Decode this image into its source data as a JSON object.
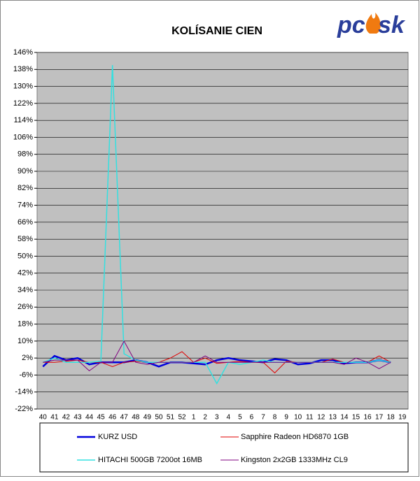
{
  "chart_data": {
    "type": "line",
    "title": "KOLÍSANIE CIEN",
    "logo": {
      "left": "pc",
      "right": "sk"
    },
    "categories": [
      "40",
      "41",
      "42",
      "43",
      "44",
      "45",
      "46",
      "47",
      "48",
      "49",
      "50",
      "51",
      "52",
      "1",
      "2",
      "3",
      "4",
      "5",
      "6",
      "7",
      "8",
      "9",
      "10",
      "11",
      "12",
      "13",
      "14",
      "15",
      "16",
      "17",
      "18",
      "19"
    ],
    "ylim": [
      -22,
      146
    ],
    "yticks": [
      {
        "value": -22,
        "label": "-22%"
      },
      {
        "value": -14,
        "label": "-14%"
      },
      {
        "value": -6,
        "label": "-6%"
      },
      {
        "value": 2,
        "label": "2%"
      },
      {
        "value": 10,
        "label": "10%"
      },
      {
        "value": 18,
        "label": "18%"
      },
      {
        "value": 26,
        "label": "26%"
      },
      {
        "value": 34,
        "label": "34%"
      },
      {
        "value": 42,
        "label": "42%"
      },
      {
        "value": 50,
        "label": "50%"
      },
      {
        "value": 58,
        "label": "58%"
      },
      {
        "value": 66,
        "label": "66%"
      },
      {
        "value": 74,
        "label": "74%"
      },
      {
        "value": 82,
        "label": "82%"
      },
      {
        "value": 90,
        "label": "90%"
      },
      {
        "value": 98,
        "label": "98%"
      },
      {
        "value": 106,
        "label": "106%"
      },
      {
        "value": 114,
        "label": "114%"
      },
      {
        "value": 122,
        "label": "122%"
      },
      {
        "value": 130,
        "label": "130%"
      },
      {
        "value": 138,
        "label": "138%"
      },
      {
        "value": 146,
        "label": "146%"
      }
    ],
    "grid": true,
    "series": [
      {
        "name": "KURZ USD",
        "color": "#0000dd",
        "width": 2.5,
        "values": [
          -2,
          3,
          1,
          2,
          -1,
          0,
          0,
          0,
          1,
          0,
          -2,
          0,
          0,
          -0.5,
          -1,
          1,
          2,
          1,
          0.5,
          0,
          1.5,
          1,
          -1,
          -0.5,
          1,
          1,
          -0.5,
          0,
          0,
          1,
          0,
          null
        ]
      },
      {
        "name": "Sapphire Radeon HD6870 1GB",
        "color": "#e00000",
        "width": 1,
        "values": [
          0,
          0,
          0.5,
          1,
          0,
          0,
          -2,
          0,
          0.5,
          0,
          0,
          2,
          5,
          0,
          2,
          -0.5,
          0,
          0.5,
          0,
          0,
          -5,
          0.5,
          0,
          0,
          0,
          1.5,
          0,
          0,
          0,
          3,
          0,
          null
        ]
      },
      {
        "name": "HITACHI 500GB 7200ot 16MB",
        "color": "#33e0e0",
        "width": 1.5,
        "values": [
          0,
          2,
          0,
          0,
          0,
          0.5,
          140,
          4,
          1,
          0,
          0,
          0,
          0,
          0,
          0,
          -10,
          0,
          -1,
          0,
          1,
          0,
          0,
          0,
          0,
          0,
          0,
          0,
          0,
          0,
          1,
          0,
          null
        ]
      },
      {
        "name": "Kingston 2x2GB 1333MHz CL9",
        "color": "#800080",
        "width": 1,
        "values": [
          0,
          1,
          1,
          1,
          -4,
          0,
          0,
          10,
          0,
          -1,
          0,
          0,
          0,
          0,
          3,
          0,
          0,
          0,
          0,
          0,
          0,
          0,
          0,
          0,
          0,
          0,
          -1,
          2,
          0,
          -3,
          0,
          null
        ]
      }
    ]
  }
}
